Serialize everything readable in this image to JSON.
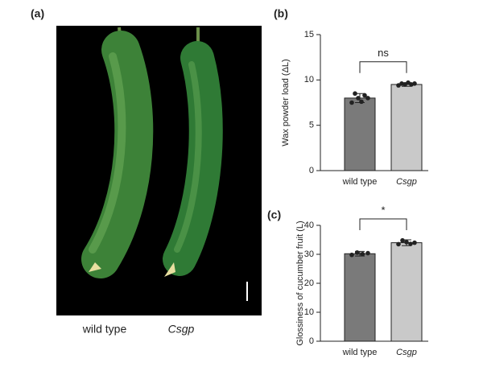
{
  "figure_a": {
    "panel": "(a)",
    "labels": [
      "wild type",
      "Csgp"
    ]
  },
  "chart_data": [
    {
      "type": "bar",
      "panel": "(b)",
      "y_label": "Wax powder load (ΔL)",
      "categories": [
        "wild type",
        "Csgp"
      ],
      "values": [
        8.0,
        9.5
      ],
      "errors": [
        0.5,
        0.2
      ],
      "points": [
        [
          7.5,
          8.5,
          8.0,
          7.6,
          8.3,
          8.0
        ],
        [
          9.4,
          9.6,
          9.5,
          9.7,
          9.5,
          9.6
        ]
      ],
      "colors": [
        "#7a7a7a",
        "#c9c9c9"
      ],
      "annotation": "ns",
      "ylim": [
        0,
        15
      ],
      "yticks": [
        0,
        5,
        10,
        15
      ]
    },
    {
      "type": "bar",
      "panel": "(c)",
      "y_label": "Glossiness of cucumber fruit (L)",
      "categories": [
        "wild type",
        "Csgp"
      ],
      "values": [
        30.2,
        34.0
      ],
      "errors": [
        0.8,
        1.0
      ],
      "points": [
        [
          29.8,
          30.6,
          30.1,
          30.4
        ],
        [
          33.5,
          34.8,
          34.2,
          33.6,
          34.0
        ]
      ],
      "colors": [
        "#7a7a7a",
        "#c9c9c9"
      ],
      "annotation": "*",
      "ylim": [
        0,
        40
      ],
      "yticks": [
        0,
        10,
        20,
        30,
        40
      ]
    }
  ]
}
